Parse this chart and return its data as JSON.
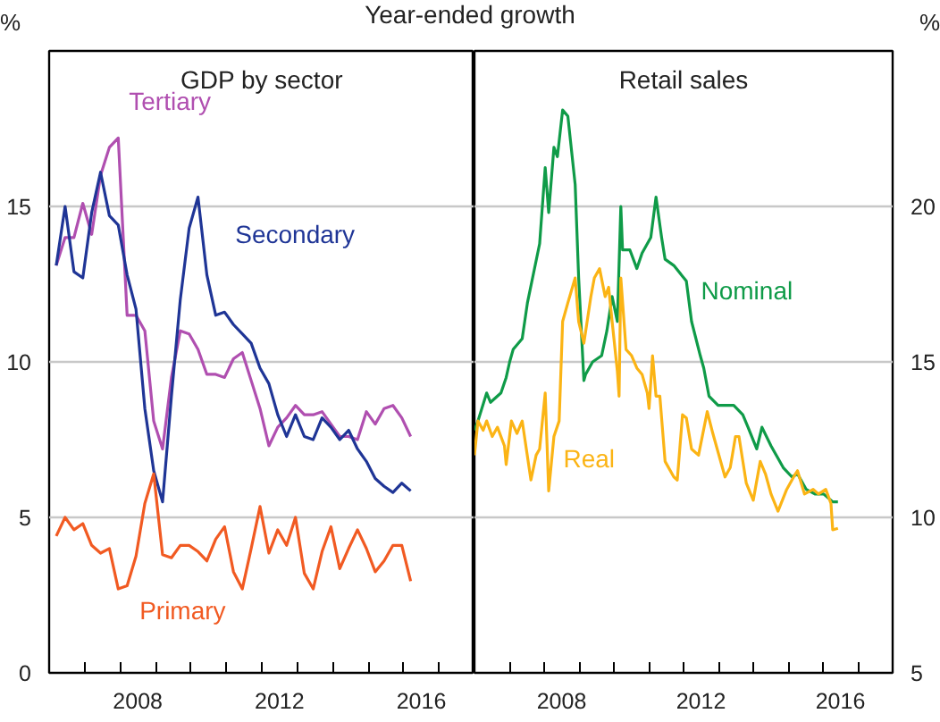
{
  "chart_data": [
    {
      "type": "line",
      "title": "GDP by sector",
      "annotations": [
        "Year-ended growth"
      ],
      "ylabel": "%",
      "xlim": [
        2006,
        2018
      ],
      "ylim": [
        0,
        20
      ],
      "xticks": [
        {
          "value": 2007,
          "label": null
        },
        {
          "value": 2008,
          "label": null
        },
        {
          "value": 2009,
          "label": null
        },
        {
          "value": 2010,
          "label": null
        },
        {
          "value": 2011,
          "label": null
        },
        {
          "value": 2012,
          "label": null
        },
        {
          "value": 2013,
          "label": null
        },
        {
          "value": 2014,
          "label": null
        },
        {
          "value": 2015,
          "label": null
        },
        {
          "value": 2016,
          "label": null
        },
        {
          "value": 2017,
          "label": null
        },
        {
          "value": 2008.5,
          "label": "2008"
        },
        {
          "value": 2012.5,
          "label": "2012"
        },
        {
          "value": 2016.5,
          "label": "2016"
        }
      ],
      "yticks": [
        0,
        5,
        10,
        15
      ],
      "grid": "y",
      "legend": false,
      "marker": "none",
      "line_style": "solid",
      "x": [
        2006.2,
        2006.45,
        2006.7,
        2006.95,
        2007.2,
        2007.45,
        2007.7,
        2007.95,
        2008.2,
        2008.45,
        2008.7,
        2008.95,
        2009.2,
        2009.45,
        2009.7,
        2009.95,
        2010.2,
        2010.45,
        2010.7,
        2010.95,
        2011.2,
        2011.45,
        2011.7,
        2011.95,
        2012.2,
        2012.45,
        2012.7,
        2012.95,
        2013.2,
        2013.45,
        2013.7,
        2013.95,
        2014.2,
        2014.45,
        2014.7,
        2014.95,
        2015.2,
        2015.45,
        2015.7,
        2015.95,
        2016.2
      ],
      "series": [
        {
          "name": "Tertiary",
          "color": "#b04fb0",
          "values": [
            13.1,
            14.0,
            14.0,
            15.1,
            14.1,
            16.0,
            16.9,
            17.2,
            11.5,
            11.5,
            11.0,
            8.1,
            7.2,
            9.5,
            11.0,
            10.9,
            10.4,
            9.6,
            9.6,
            9.5,
            10.1,
            10.3,
            9.4,
            8.5,
            7.3,
            7.9,
            8.2,
            8.6,
            8.3,
            8.3,
            8.4,
            8.0,
            7.6,
            7.6,
            7.5,
            8.4,
            8.0,
            8.5,
            8.6,
            8.2,
            7.6
          ]
        },
        {
          "name": "Secondary",
          "color": "#1f3596",
          "values": [
            13.1,
            15.0,
            12.9,
            12.7,
            14.8,
            16.1,
            14.7,
            14.4,
            12.8,
            11.7,
            8.5,
            6.5,
            5.5,
            8.9,
            12.0,
            14.3,
            15.3,
            12.8,
            11.5,
            11.6,
            11.2,
            10.9,
            10.6,
            9.8,
            9.3,
            8.3,
            7.6,
            8.3,
            7.6,
            7.5,
            8.2,
            7.9,
            7.5,
            7.8,
            7.2,
            6.8,
            6.25,
            6.0,
            5.8,
            6.1,
            5.85
          ]
        },
        {
          "name": "Primary",
          "color": "#f15a22",
          "values": [
            4.4,
            5.0,
            4.6,
            4.8,
            4.1,
            3.85,
            4.0,
            2.7,
            2.8,
            3.75,
            5.45,
            6.4,
            3.8,
            3.7,
            4.1,
            4.1,
            3.9,
            3.6,
            4.3,
            4.7,
            3.25,
            2.7,
            4.0,
            5.35,
            3.85,
            4.6,
            4.1,
            5.0,
            3.2,
            2.7,
            3.9,
            4.7,
            3.35,
            4.0,
            4.6,
            4.0,
            3.25,
            3.6,
            4.1,
            4.1,
            2.95
          ]
        }
      ]
    },
    {
      "type": "line",
      "title": "Retail sales",
      "y2label": "%",
      "xlim": [
        2006,
        2018
      ],
      "y2lim": [
        5,
        25
      ],
      "xticks": [
        {
          "value": 2007,
          "label": null
        },
        {
          "value": 2008,
          "label": null
        },
        {
          "value": 2009,
          "label": null
        },
        {
          "value": 2010,
          "label": null
        },
        {
          "value": 2011,
          "label": null
        },
        {
          "value": 2012,
          "label": null
        },
        {
          "value": 2013,
          "label": null
        },
        {
          "value": 2014,
          "label": null
        },
        {
          "value": 2015,
          "label": null
        },
        {
          "value": 2016,
          "label": null
        },
        {
          "value": 2017,
          "label": null
        },
        {
          "value": 2008.5,
          "label": "2008"
        },
        {
          "value": 2012.5,
          "label": "2012"
        },
        {
          "value": 2016.5,
          "label": "2016"
        }
      ],
      "y2ticks": [
        5,
        10,
        15,
        20
      ],
      "grid": "y",
      "legend": false,
      "marker": "none",
      "line_style": "solid",
      "series": [
        {
          "name": "Nominal",
          "color": "#0f9b48",
          "axis": "y2",
          "x": [
            2006.0,
            2006.1,
            2006.35,
            2006.46,
            2006.76,
            2006.91,
            2007.01,
            2007.11,
            2007.37,
            2007.52,
            2007.87,
            2008.03,
            2008.13,
            2008.28,
            2008.38,
            2008.53,
            2008.68,
            2008.89,
            2008.99,
            2009.14,
            2009.19,
            2009.39,
            2009.65,
            2009.8,
            2009.95,
            2010.1,
            2010.2,
            2010.25,
            2010.46,
            2010.66,
            2010.81,
            2011.06,
            2011.21,
            2011.37,
            2011.47,
            2011.72,
            2012.08,
            2012.23,
            2012.48,
            2012.58,
            2012.73,
            2012.99,
            2013.44,
            2013.7,
            2013.85,
            2014.1,
            2014.25,
            2014.51,
            2014.86,
            2015.11,
            2015.27,
            2015.52,
            2015.77,
            2016.02,
            2016.28,
            2016.43
          ],
          "values": [
            12.8,
            13.1,
            14.0,
            13.7,
            14.0,
            14.5,
            15.0,
            15.4,
            15.75,
            16.9,
            18.8,
            21.25,
            19.8,
            21.9,
            21.6,
            23.1,
            22.9,
            20.7,
            17.7,
            14.4,
            14.6,
            15.0,
            15.2,
            16.0,
            17.1,
            16.3,
            20.0,
            18.6,
            18.6,
            18.0,
            18.5,
            19.0,
            20.3,
            19.0,
            18.3,
            18.1,
            17.6,
            16.3,
            15.2,
            14.8,
            13.9,
            13.6,
            13.6,
            13.3,
            12.9,
            12.2,
            12.9,
            12.3,
            11.6,
            11.3,
            11.4,
            10.9,
            10.75,
            10.75,
            10.5,
            10.5
          ]
        },
        {
          "name": "Real",
          "color": "#fbb415",
          "axis": "y2",
          "x": [
            2006.0,
            2006.1,
            2006.25,
            2006.35,
            2006.51,
            2006.66,
            2006.86,
            2006.91,
            2007.06,
            2007.22,
            2007.37,
            2007.62,
            2007.77,
            2007.87,
            2008.03,
            2008.13,
            2008.28,
            2008.43,
            2008.53,
            2008.68,
            2008.89,
            2008.99,
            2009.14,
            2009.34,
            2009.44,
            2009.59,
            2009.75,
            2009.85,
            2009.95,
            2010.1,
            2010.15,
            2010.2,
            2010.35,
            2010.51,
            2010.66,
            2010.81,
            2010.96,
            2011.01,
            2011.11,
            2011.21,
            2011.32,
            2011.47,
            2011.72,
            2011.82,
            2011.97,
            2012.08,
            2012.23,
            2012.43,
            2012.68,
            2012.84,
            2013.19,
            2013.34,
            2013.49,
            2013.59,
            2013.8,
            2014.0,
            2014.2,
            2014.35,
            2014.51,
            2014.71,
            2014.96,
            2015.21,
            2015.27,
            2015.47,
            2015.72,
            2015.87,
            2016.08,
            2016.23,
            2016.28,
            2016.43
          ],
          "values": [
            12.0,
            13.1,
            12.8,
            13.1,
            12.6,
            12.9,
            12.3,
            11.7,
            13.1,
            12.7,
            13.1,
            11.2,
            12.0,
            12.2,
            14.0,
            10.85,
            12.6,
            13.1,
            16.3,
            16.9,
            17.7,
            16.3,
            15.6,
            17.1,
            17.7,
            18.0,
            17.1,
            17.4,
            16.3,
            14.7,
            13.9,
            17.7,
            15.4,
            15.2,
            14.8,
            14.6,
            14.0,
            13.5,
            15.2,
            13.9,
            13.9,
            11.8,
            11.3,
            11.2,
            13.3,
            13.2,
            12.2,
            12.0,
            13.4,
            12.7,
            11.3,
            11.6,
            12.6,
            12.6,
            11.1,
            10.55,
            11.8,
            11.4,
            10.75,
            10.2,
            10.9,
            11.4,
            11.5,
            10.75,
            10.9,
            10.75,
            10.9,
            10.45,
            9.6,
            9.65
          ]
        }
      ]
    }
  ]
}
